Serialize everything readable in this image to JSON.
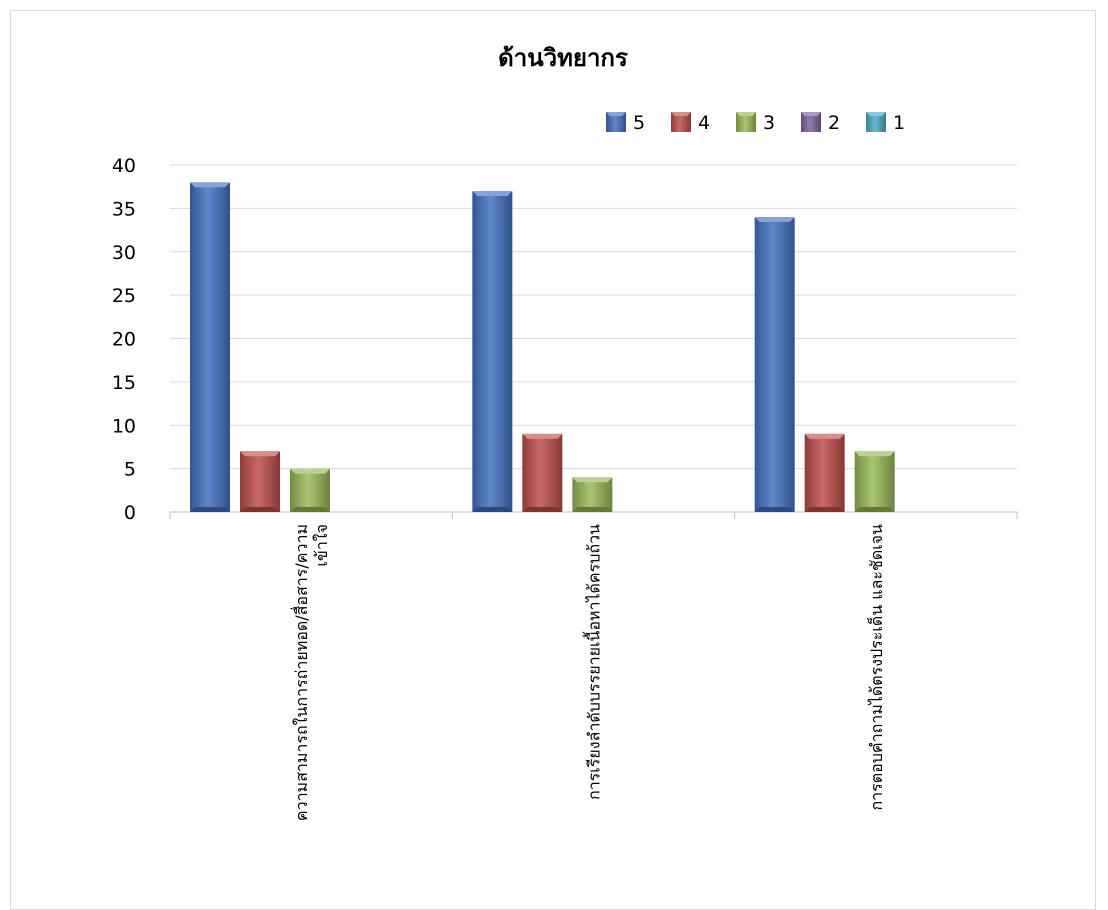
{
  "chart_data": {
    "type": "bar",
    "title": "ด้านวิทยากร",
    "xlabel": "",
    "ylabel": "",
    "ylim": [
      0,
      40
    ],
    "yticks": [
      "0",
      "5",
      "10",
      "15",
      "20",
      "25",
      "30",
      "35",
      "40"
    ],
    "grid": true,
    "legend_position": "top-right",
    "categories": [
      "ความสามารถในการถ่ายทอด/สื่อสาร/ความเข้าใจ",
      "การเรียงลำดับบรรยายเนื้อหาได้ครบถ้วน",
      "การตอบคำถามได้ตรงประเด็น และชัดเจน"
    ],
    "category_lines": [
      [
        "ความสามารถในการถ่ายทอด/สื่อสาร/ความ",
        "เข้าใจ"
      ],
      [
        "การเรียงลำดับบรรยายเนื้อหาได้ครบถ้วน"
      ],
      [
        "การตอบคำถามได้ตรงประเด็น และชัดเจน"
      ]
    ],
    "series": [
      {
        "name": "5",
        "color": "#4472C4",
        "values": [
          38,
          37,
          34
        ]
      },
      {
        "name": "4",
        "color": "#C0504D",
        "values": [
          7,
          9,
          9
        ]
      },
      {
        "name": "3",
        "color": "#9BBB59",
        "values": [
          5,
          4,
          7
        ]
      },
      {
        "name": "2",
        "color": "#8064A2",
        "values": [
          0,
          0,
          0
        ]
      },
      {
        "name": "1",
        "color": "#4BACC6",
        "values": [
          0,
          0,
          0
        ]
      }
    ]
  }
}
